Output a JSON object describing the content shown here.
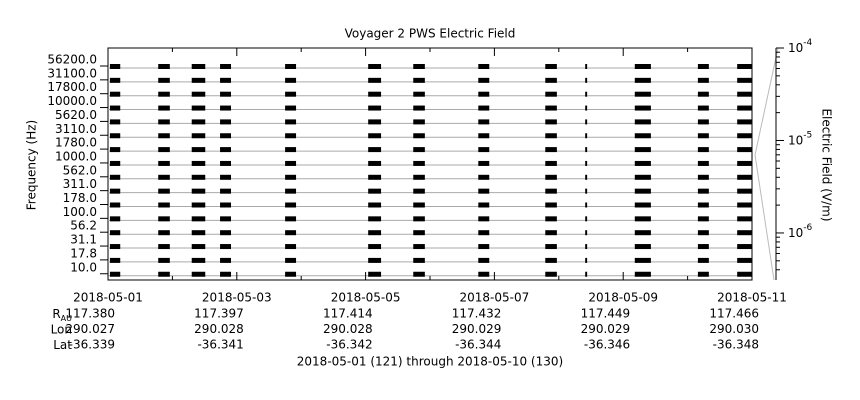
{
  "chart_data": {
    "type": "timeline",
    "title": "Voyager 2 PWS Electric Field",
    "ylabel": "Frequency (Hz)",
    "y2label": "Electric Field (V/m)",
    "categories": [
      "56200.0",
      "31100.0",
      "17800.0",
      "10000.0",
      "5620.0",
      "3110.0",
      "1780.0",
      "1000.0",
      "562.0",
      "311.0",
      "178.0",
      "100.0",
      "56.2",
      "31.1",
      "17.8",
      "10.0"
    ],
    "bursts": [
      [
        0.03,
        0.19
      ],
      [
        0.78,
        0.96
      ],
      [
        1.3,
        1.51
      ],
      [
        1.74,
        1.91
      ],
      [
        2.75,
        2.92
      ],
      [
        4.04,
        4.24
      ],
      [
        4.74,
        4.92
      ],
      [
        5.75,
        5.92
      ],
      [
        6.79,
        6.97
      ],
      [
        7.41,
        7.44
      ],
      [
        8.18,
        8.43
      ],
      [
        9.16,
        9.33
      ],
      [
        9.77,
        10.0
      ]
    ],
    "color": "#000000",
    "baseline_color": "#aaaaaa",
    "xlim": [
      0,
      10
    ],
    "xticks": [
      {
        "value": 0,
        "label": "2018-05-01"
      },
      {
        "value": 2,
        "label": "2018-05-03"
      },
      {
        "value": 4,
        "label": "2018-05-05"
      },
      {
        "value": 6,
        "label": "2018-05-07"
      },
      {
        "value": 8,
        "label": "2018-05-09"
      },
      {
        "value": 10,
        "label": "2018-05-11"
      }
    ],
    "xminorticks": [
      1,
      3,
      5,
      7,
      9
    ],
    "y2lim": [
      3.1e-07,
      0.0001
    ],
    "y2log": true,
    "y2ticks": [
      {
        "value": 0.0001,
        "label": "10",
        "exponent": "-4"
      },
      {
        "value": 1e-05,
        "label": "10",
        "exponent": "-5"
      },
      {
        "value": 1e-06,
        "label": "10",
        "exponent": "-6"
      }
    ],
    "ephemeris": [
      {
        "label": "R",
        "sub": "AU",
        "values": [
          "117.380",
          "117.397",
          "117.414",
          "117.432",
          "117.449",
          "117.466"
        ]
      },
      {
        "label": "Lon",
        "values": [
          "290.027",
          "290.028",
          "290.028",
          "290.029",
          "290.029",
          "290.030"
        ]
      },
      {
        "label": "Lat",
        "values": [
          "-36.339",
          "-36.341",
          "-36.342",
          "-36.344",
          "-36.346",
          "-36.348"
        ]
      }
    ],
    "footer": "2018-05-01 (121) through 2018-05-10 (130)"
  }
}
